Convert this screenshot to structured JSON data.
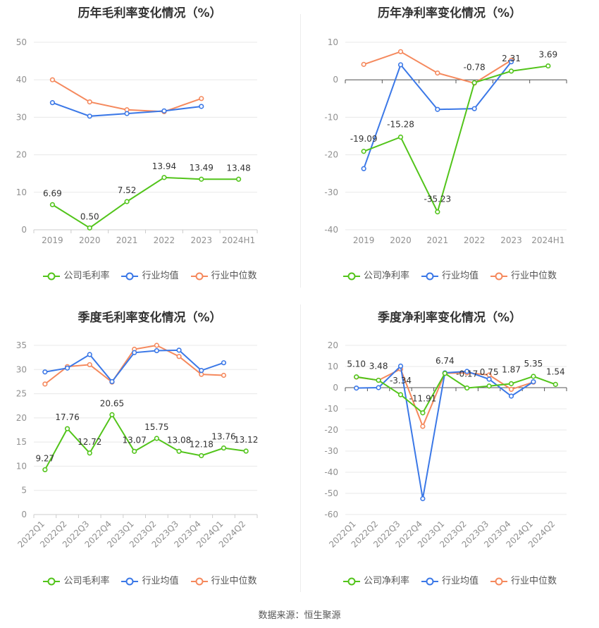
{
  "source_label": "数据来源：恒生聚源",
  "colors": {
    "company": "#52c41a",
    "industry_avg": "#3b78e7",
    "industry_median": "#f5895d",
    "grid": "#e8e8e8",
    "axis_text": "#909090"
  },
  "chart_data": [
    {
      "id": "annual-gross",
      "type": "line",
      "title": "历年毛利率变化情况（%）",
      "categories": [
        "2019",
        "2020",
        "2021",
        "2022",
        "2023",
        "2024H1"
      ],
      "ylim": [
        0,
        50
      ],
      "yticks": [
        0,
        10,
        20,
        30,
        40,
        50
      ],
      "rotate_labels": false,
      "series": [
        {
          "name": "公司毛利率",
          "role": "company",
          "values": [
            6.69,
            0.5,
            7.52,
            13.94,
            13.49,
            13.48
          ],
          "labels": [
            "6.69",
            "0.50",
            "7.52",
            "13.94",
            "13.49",
            "13.48"
          ]
        },
        {
          "name": "行业均值",
          "role": "industry_avg",
          "values": [
            33.9,
            30.3,
            31.0,
            31.7,
            32.9,
            null
          ]
        },
        {
          "name": "行业中位数",
          "role": "industry_median",
          "values": [
            40.0,
            34.1,
            32.0,
            31.5,
            35.0,
            null
          ]
        }
      ]
    },
    {
      "id": "annual-net",
      "type": "line",
      "title": "历年净利率变化情况（%）",
      "categories": [
        "2019",
        "2020",
        "2021",
        "2022",
        "2023",
        "2024H1"
      ],
      "ylim": [
        -40,
        10
      ],
      "yticks": [
        -40,
        -30,
        -20,
        -10,
        0,
        10
      ],
      "rotate_labels": false,
      "series": [
        {
          "name": "公司净利率",
          "role": "company",
          "values": [
            -19.09,
            -15.28,
            -35.23,
            -0.78,
            2.31,
            3.69
          ],
          "labels": [
            "-19.09",
            "-15.28",
            "-35.23",
            "-0.78",
            "2.31",
            "3.69"
          ]
        },
        {
          "name": "行业均值",
          "role": "industry_avg",
          "values": [
            -23.7,
            4.0,
            -7.9,
            -7.7,
            4.8,
            null
          ]
        },
        {
          "name": "行业中位数",
          "role": "industry_median",
          "values": [
            4.1,
            7.5,
            1.8,
            -0.9,
            5.2,
            null
          ]
        }
      ]
    },
    {
      "id": "quarterly-gross",
      "type": "line",
      "title": "季度毛利率变化情况（%）",
      "categories": [
        "2022Q1",
        "2022Q2",
        "2022Q3",
        "2022Q4",
        "2023Q1",
        "2023Q2",
        "2023Q3",
        "2023Q4",
        "2024Q1",
        "2024Q2"
      ],
      "ylim": [
        0,
        35
      ],
      "yticks": [
        0,
        5,
        10,
        15,
        20,
        25,
        30,
        35
      ],
      "rotate_labels": true,
      "series": [
        {
          "name": "公司毛利率",
          "role": "company",
          "values": [
            9.27,
            17.76,
            12.72,
            20.65,
            13.07,
            15.75,
            13.08,
            12.18,
            13.76,
            13.12
          ],
          "labels": [
            "9.27",
            "17.76",
            "12.72",
            "20.65",
            "13.07",
            "15.75",
            "13.08",
            "12.18",
            "13.76",
            "13.12"
          ]
        },
        {
          "name": "行业均值",
          "role": "industry_avg",
          "values": [
            29.5,
            30.3,
            33.1,
            27.5,
            33.5,
            33.9,
            34.0,
            29.8,
            31.4,
            null
          ]
        },
        {
          "name": "行业中位数",
          "role": "industry_median",
          "values": [
            27.0,
            30.6,
            31.0,
            27.4,
            34.2,
            35.0,
            32.7,
            29.0,
            28.8,
            null
          ]
        }
      ]
    },
    {
      "id": "quarterly-net",
      "type": "line",
      "title": "季度净利率变化情况（%）",
      "categories": [
        "2022Q1",
        "2022Q2",
        "2022Q3",
        "2022Q4",
        "2023Q1",
        "2023Q2",
        "2023Q3",
        "2023Q4",
        "2024Q1",
        "2024Q2"
      ],
      "ylim": [
        -60,
        20
      ],
      "yticks": [
        -60,
        -50,
        -40,
        -30,
        -20,
        -10,
        0,
        10,
        20
      ],
      "rotate_labels": true,
      "series": [
        {
          "name": "公司净利率",
          "role": "company",
          "values": [
            5.1,
            3.48,
            -3.34,
            -11.91,
            6.74,
            -0.17,
            0.75,
            1.87,
            5.35,
            1.54
          ],
          "labels": [
            "5.10",
            "3.48",
            "-3.34",
            "-11.91",
            "6.74",
            "-0.17",
            "0.75",
            "1.87",
            "5.35",
            "1.54"
          ]
        },
        {
          "name": "行业均值",
          "role": "industry_avg",
          "values": [
            -0.2,
            0.0,
            10.2,
            -52.5,
            7.0,
            7.7,
            4.0,
            -4.0,
            2.8,
            null
          ]
        },
        {
          "name": "行业中位数",
          "role": "industry_median",
          "values": [
            5.0,
            3.5,
            8.8,
            -18.3,
            6.8,
            7.0,
            6.0,
            -0.8,
            2.6,
            null
          ]
        }
      ]
    }
  ]
}
